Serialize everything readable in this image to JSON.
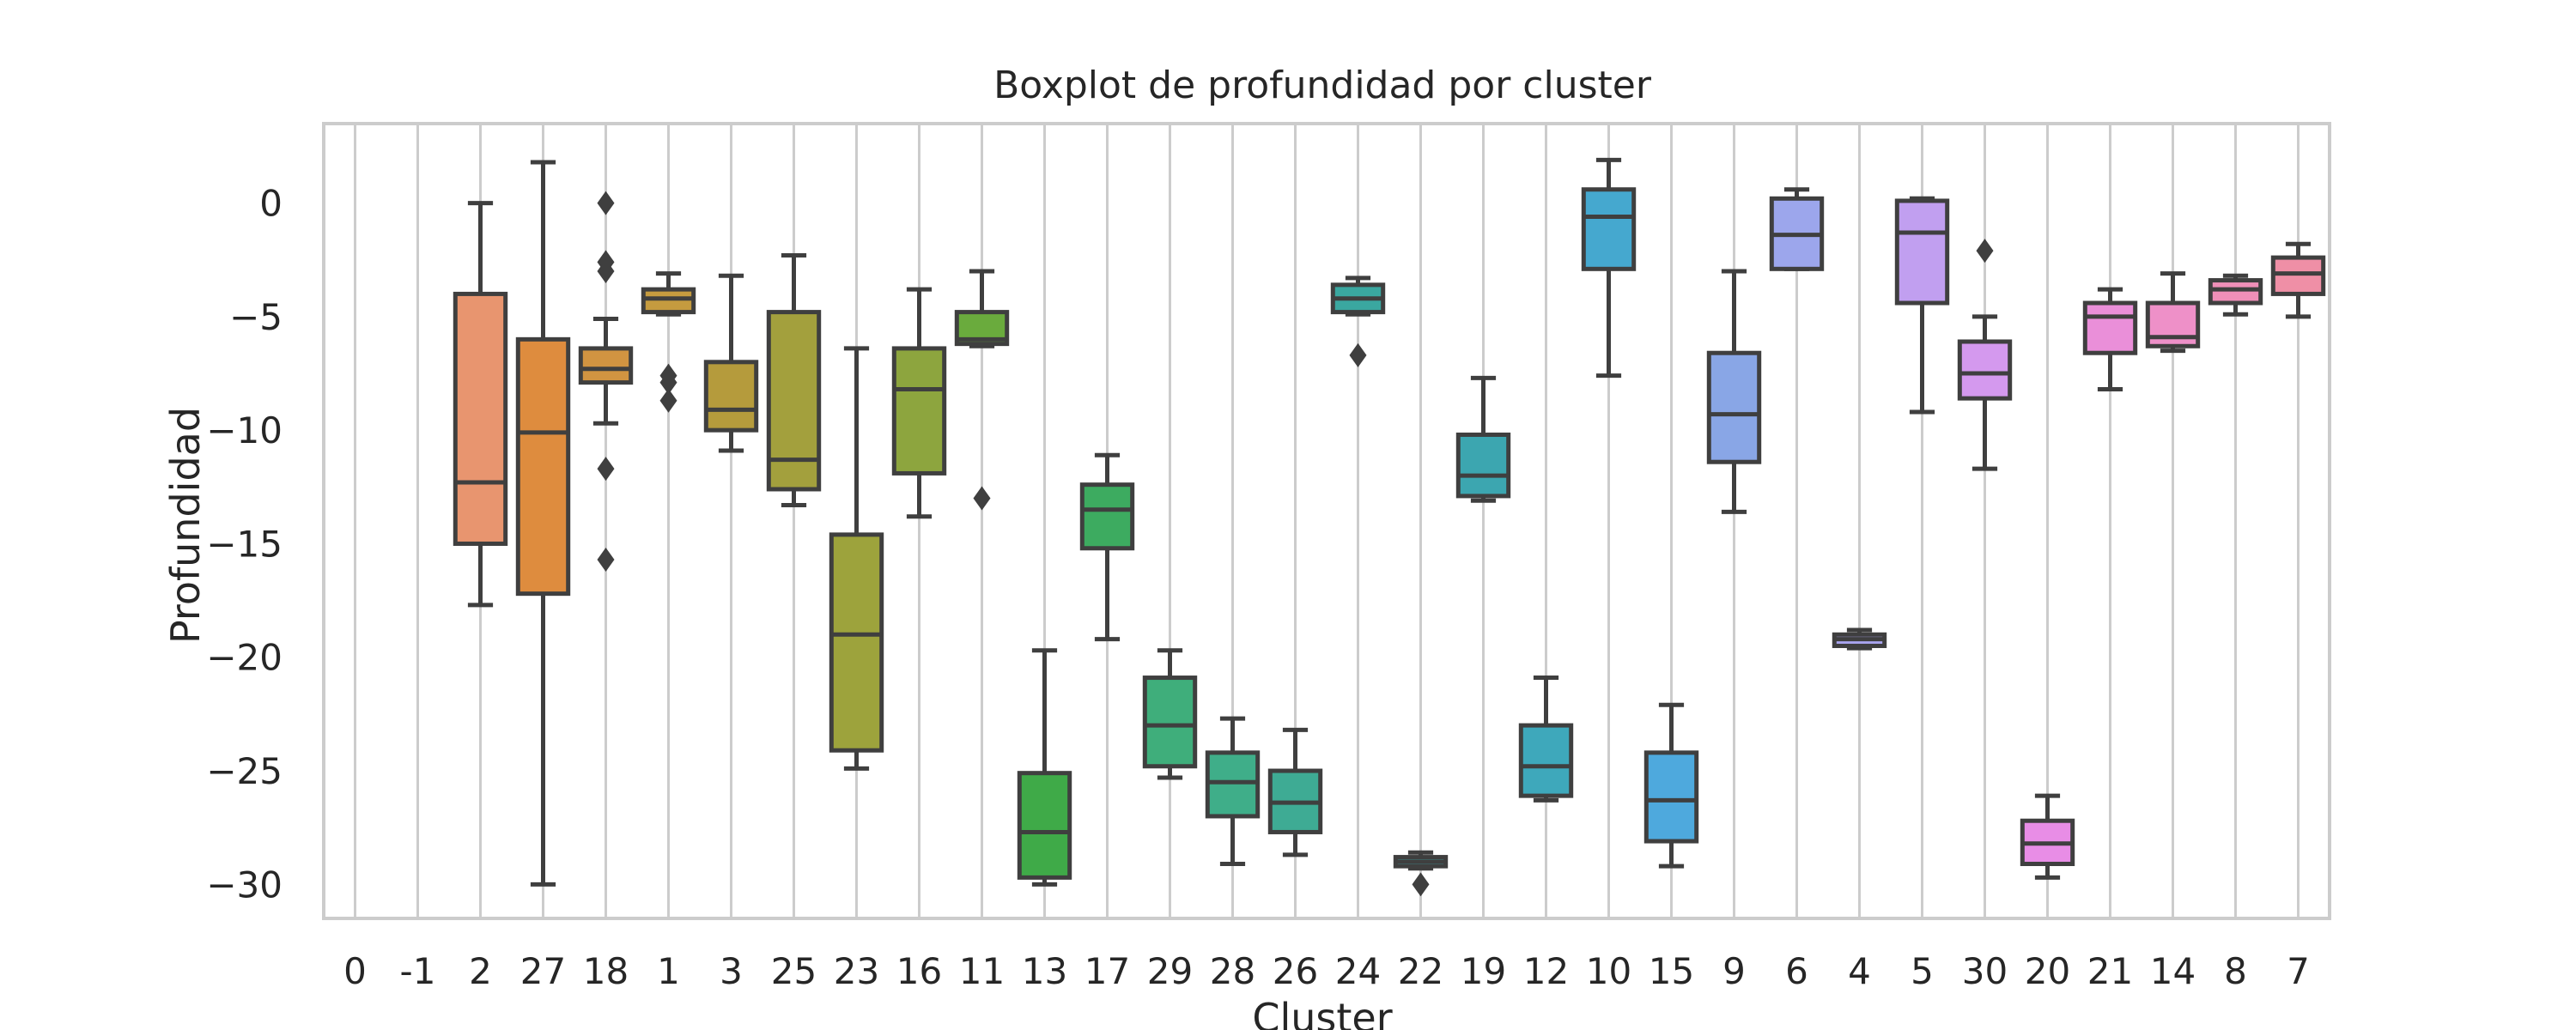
{
  "chart_data": {
    "type": "boxplot",
    "title": "Boxplot de profundidad por cluster",
    "xlabel": "Cluster",
    "ylabel": "Profundidad",
    "ylim": [
      -31.5,
      3.5
    ],
    "yticks": [
      0,
      -5,
      -10,
      -15,
      -20,
      -25,
      -30
    ],
    "grid": "vertical",
    "categories": [
      "0",
      "-1",
      "2",
      "27",
      "18",
      "1",
      "3",
      "25",
      "23",
      "16",
      "11",
      "13",
      "17",
      "29",
      "28",
      "26",
      "24",
      "22",
      "19",
      "12",
      "10",
      "15",
      "9",
      "6",
      "4",
      "5",
      "30",
      "20",
      "21",
      "14",
      "8",
      "7"
    ],
    "boxes": [
      {
        "cluster": "0",
        "color": null
      },
      {
        "cluster": "-1",
        "color": null
      },
      {
        "cluster": "2",
        "whislo": -17.7,
        "q1": -15.0,
        "med": -12.3,
        "q3": -4.0,
        "whishi": 0.0,
        "fliers": [],
        "color": "#e8956f"
      },
      {
        "cluster": "27",
        "whislo": -30.0,
        "q1": -17.2,
        "med": -10.1,
        "q3": -6.0,
        "whishi": 1.8,
        "fliers": [],
        "color": "#de8c3e"
      },
      {
        "cluster": "18",
        "whislo": -9.7,
        "q1": -7.9,
        "med": -7.3,
        "q3": -6.4,
        "whishi": -5.1,
        "fliers": [
          0.0,
          -2.6,
          -3.0,
          -11.7,
          -15.7
        ],
        "color": "#d19441"
      },
      {
        "cluster": "1",
        "whislo": -4.9,
        "q1": -4.8,
        "med": -4.2,
        "q3": -3.8,
        "whishi": -3.1,
        "fliers": [
          -7.6,
          -7.9,
          -8.7
        ],
        "color": "#c59b3f"
      },
      {
        "cluster": "3",
        "whislo": -10.9,
        "q1": -10.0,
        "med": -9.1,
        "q3": -7.0,
        "whishi": -3.2,
        "fliers": [],
        "color": "#b59b3c"
      },
      {
        "cluster": "25",
        "whislo": -13.3,
        "q1": -12.6,
        "med": -11.3,
        "q3": -4.8,
        "whishi": -2.3,
        "fliers": [],
        "color": "#a3a03d"
      },
      {
        "cluster": "23",
        "whislo": -24.9,
        "q1": -24.1,
        "med": -19.0,
        "q3": -14.6,
        "whishi": -6.4,
        "fliers": [],
        "color": "#9da33c"
      },
      {
        "cluster": "16",
        "whislo": -13.8,
        "q1": -11.9,
        "med": -8.2,
        "q3": -6.4,
        "whishi": -3.8,
        "fliers": [],
        "color": "#8da53e"
      },
      {
        "cluster": "11",
        "whislo": -6.3,
        "q1": -6.2,
        "med": -6.0,
        "q3": -4.8,
        "whishi": -3.0,
        "fliers": [
          -13.0
        ],
        "color": "#6aab3d"
      },
      {
        "cluster": "13",
        "whislo": -30.0,
        "q1": -29.7,
        "med": -27.7,
        "q3": -25.1,
        "whishi": -19.7,
        "fliers": [],
        "color": "#3faa48"
      },
      {
        "cluster": "17",
        "whislo": -19.2,
        "q1": -15.2,
        "med": -13.5,
        "q3": -12.4,
        "whishi": -11.1,
        "fliers": [],
        "color": "#3dab60"
      },
      {
        "cluster": "29",
        "whislo": -25.3,
        "q1": -24.8,
        "med": -23.0,
        "q3": -20.9,
        "whishi": -19.7,
        "fliers": [],
        "color": "#3fae7b"
      },
      {
        "cluster": "28",
        "whislo": -29.1,
        "q1": -27.0,
        "med": -25.5,
        "q3": -24.2,
        "whishi": -22.7,
        "fliers": [],
        "color": "#3fae89"
      },
      {
        "cluster": "26",
        "whislo": -28.7,
        "q1": -27.7,
        "med": -26.4,
        "q3": -25.0,
        "whishi": -23.2,
        "fliers": [],
        "color": "#3eab94"
      },
      {
        "cluster": "24",
        "whislo": -4.9,
        "q1": -4.8,
        "med": -4.2,
        "q3": -3.6,
        "whishi": -3.3,
        "fliers": [
          -6.7
        ],
        "color": "#3aa7a0"
      },
      {
        "cluster": "22",
        "whislo": -29.3,
        "q1": -29.2,
        "med": -29.0,
        "q3": -28.8,
        "whishi": -28.6,
        "fliers": [
          -30.0
        ],
        "color": "#3ca6a8"
      },
      {
        "cluster": "19",
        "whislo": -13.1,
        "q1": -12.9,
        "med": -12.0,
        "q3": -10.2,
        "whishi": -7.7,
        "fliers": [],
        "color": "#3ca6b0"
      },
      {
        "cluster": "12",
        "whislo": -26.3,
        "q1": -26.1,
        "med": -24.8,
        "q3": -23.0,
        "whishi": -20.9,
        "fliers": [],
        "color": "#3ea8bb"
      },
      {
        "cluster": "10",
        "whislo": -7.6,
        "q1": -2.9,
        "med": -0.6,
        "q3": 0.6,
        "whishi": 1.9,
        "fliers": [],
        "color": "#45a8cf"
      },
      {
        "cluster": "15",
        "whislo": -29.2,
        "q1": -28.1,
        "med": -26.3,
        "q3": -24.2,
        "whishi": -22.1,
        "fliers": [],
        "color": "#4ea9dd"
      },
      {
        "cluster": "9",
        "whislo": -13.6,
        "q1": -11.4,
        "med": -9.3,
        "q3": -6.6,
        "whishi": -3.0,
        "fliers": [],
        "color": "#89a6e6"
      },
      {
        "cluster": "6",
        "whislo": -2.9,
        "q1": -2.9,
        "med": -1.4,
        "q3": 0.2,
        "whishi": 0.6,
        "fliers": [],
        "color": "#9ca6ec"
      },
      {
        "cluster": "4",
        "whislo": -19.6,
        "q1": -19.5,
        "med": -19.2,
        "q3": -19.0,
        "whishi": -18.8,
        "fliers": [],
        "color": "#a9a4ee"
      },
      {
        "cluster": "5",
        "whislo": -9.2,
        "q1": -4.4,
        "med": -1.3,
        "q3": 0.1,
        "whishi": 0.2,
        "fliers": [],
        "color": "#c19ff0"
      },
      {
        "cluster": "30",
        "whislo": -11.7,
        "q1": -8.6,
        "med": -7.5,
        "q3": -6.1,
        "whishi": -5.0,
        "fliers": [
          -2.1
        ],
        "color": "#d499ee"
      },
      {
        "cluster": "20",
        "whislo": -29.7,
        "q1": -29.1,
        "med": -28.2,
        "q3": -27.2,
        "whishi": -26.1,
        "fliers": [],
        "color": "#e88de6"
      },
      {
        "cluster": "21",
        "whislo": -8.2,
        "q1": -6.6,
        "med": -5.0,
        "q3": -4.4,
        "whishi": -3.8,
        "fliers": [],
        "color": "#ea8fd9"
      },
      {
        "cluster": "14",
        "whislo": -6.5,
        "q1": -6.3,
        "med": -5.9,
        "q3": -4.4,
        "whishi": -3.1,
        "fliers": [],
        "color": "#ee90c8"
      },
      {
        "cluster": "8",
        "whislo": -4.9,
        "q1": -4.4,
        "med": -3.8,
        "q3": -3.4,
        "whishi": -3.2,
        "fliers": [],
        "color": "#ef8fb8"
      },
      {
        "cluster": "7",
        "whislo": -5.0,
        "q1": -4.0,
        "med": -3.1,
        "q3": -2.4,
        "whishi": -1.8,
        "fliers": [],
        "color": "#ef8fa6"
      }
    ]
  }
}
